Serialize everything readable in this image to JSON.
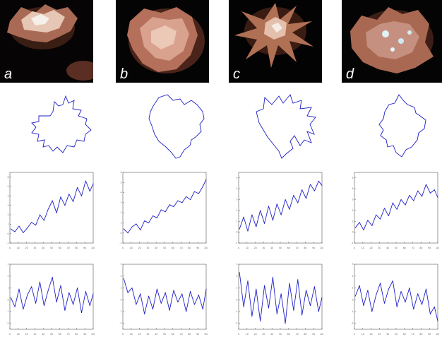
{
  "panels": [
    {
      "label": "a"
    },
    {
      "label": "b"
    },
    {
      "label": "c"
    },
    {
      "label": "d"
    }
  ],
  "colors": {
    "curve": "#1e1ec8",
    "axis": "#555555",
    "photo_bg": "#050505",
    "cell": "#d9a08a"
  },
  "chart_data": [
    {
      "type": "line",
      "panel": "a",
      "row": "signal",
      "x": [
        1,
        6,
        11,
        16,
        21,
        26,
        31,
        36,
        41,
        46,
        51,
        56,
        61,
        66,
        71,
        76,
        81,
        86,
        91,
        96,
        100
      ],
      "y": [
        0.5,
        0.2,
        0.8,
        0.1,
        0.6,
        1.2,
        0.9,
        2.0,
        1.4,
        2.6,
        3.5,
        2.2,
        3.9,
        3.0,
        4.2,
        3.4,
        4.9,
        4.0,
        5.6,
        4.5,
        5.3
      ],
      "xlim": [
        0,
        100
      ],
      "ylim": [
        -1,
        6.5
      ],
      "xticks": [
        "0",
        "10",
        "20",
        "30",
        "40",
        "50",
        "60",
        "70",
        "80",
        "90",
        "100"
      ],
      "yticks": [
        "-1",
        "0",
        "1",
        "2",
        "3",
        "4",
        "5",
        "6"
      ]
    },
    {
      "type": "line",
      "panel": "b",
      "row": "signal",
      "x": [
        1,
        6,
        11,
        16,
        21,
        26,
        31,
        36,
        41,
        46,
        51,
        56,
        61,
        66,
        71,
        76,
        81,
        86,
        91,
        96,
        100
      ],
      "y": [
        0.4,
        0.0,
        0.6,
        0.9,
        0.3,
        1.2,
        1.0,
        1.7,
        1.5,
        2.3,
        2.1,
        2.8,
        2.6,
        3.2,
        3.0,
        3.6,
        3.3,
        4.1,
        3.9,
        4.6,
        5.3
      ],
      "xlim": [
        0,
        100
      ],
      "ylim": [
        -1,
        6
      ],
      "xticks": [
        "0",
        "10",
        "20",
        "30",
        "40",
        "50",
        "60",
        "70",
        "80",
        "90",
        "100"
      ],
      "yticks": [
        "-1",
        "0",
        "1",
        "2",
        "3",
        "4",
        "5",
        "6"
      ]
    },
    {
      "type": "line",
      "panel": "c",
      "row": "signal",
      "x": [
        1,
        6,
        11,
        16,
        21,
        26,
        31,
        36,
        41,
        46,
        51,
        56,
        61,
        66,
        71,
        76,
        81,
        86,
        91,
        96,
        100
      ],
      "y": [
        0.3,
        1.4,
        0.1,
        1.6,
        0.5,
        2.0,
        0.8,
        2.4,
        1.1,
        2.6,
        1.6,
        3.0,
        2.1,
        3.4,
        2.7,
        3.9,
        3.1,
        4.4,
        3.8,
        4.7,
        4.3
      ],
      "xlim": [
        0,
        100
      ],
      "ylim": [
        -1,
        5.5
      ],
      "xticks": [
        "0",
        "10",
        "20",
        "30",
        "40",
        "50",
        "60",
        "70",
        "80",
        "90",
        "100"
      ],
      "yticks": [
        "-1",
        "0",
        "1",
        "2",
        "3",
        "4",
        "5"
      ]
    },
    {
      "type": "line",
      "panel": "d",
      "row": "signal",
      "x": [
        1,
        6,
        11,
        16,
        21,
        26,
        31,
        36,
        41,
        46,
        51,
        56,
        61,
        66,
        71,
        76,
        81,
        86,
        91,
        96,
        100
      ],
      "y": [
        0.4,
        0.9,
        0.2,
        1.1,
        0.6,
        1.6,
        1.2,
        2.2,
        1.5,
        2.7,
        2.1,
        3.0,
        2.5,
        3.4,
        2.9,
        3.8,
        3.3,
        4.4,
        3.6,
        3.9,
        3.2
      ],
      "xlim": [
        0,
        100
      ],
      "ylim": [
        -1,
        5.5
      ],
      "xticks": [
        "0",
        "10",
        "20",
        "30",
        "40",
        "50",
        "60",
        "70",
        "80",
        "90",
        "100"
      ],
      "yticks": [
        "-1",
        "0",
        "1",
        "2",
        "3",
        "4",
        "5"
      ]
    },
    {
      "type": "line",
      "panel": "a",
      "row": "detrended",
      "x": [
        1,
        6,
        11,
        16,
        21,
        26,
        31,
        36,
        41,
        46,
        51,
        56,
        61,
        66,
        71,
        76,
        81,
        86,
        91,
        96,
        100
      ],
      "y": [
        0.2,
        -0.6,
        0.9,
        -0.8,
        0.4,
        1.1,
        -0.3,
        1.5,
        -0.5,
        0.8,
        1.9,
        -0.2,
        1.2,
        -0.9,
        0.6,
        -0.4,
        1.0,
        -1.1,
        0.7,
        -0.5,
        0.5
      ],
      "xlim": [
        0,
        100
      ],
      "ylim": [
        -2.5,
        3
      ],
      "xticks": [
        "0",
        "10",
        "20",
        "30",
        "40",
        "50",
        "60",
        "70",
        "80",
        "90",
        "100"
      ],
      "yticks": [
        "-2",
        "-1",
        "0",
        "1",
        "2",
        "3"
      ]
    },
    {
      "type": "line",
      "panel": "b",
      "row": "detrended",
      "x": [
        1,
        6,
        11,
        16,
        21,
        26,
        31,
        36,
        41,
        46,
        51,
        56,
        61,
        66,
        71,
        76,
        81,
        86,
        91,
        96,
        100
      ],
      "y": [
        1.8,
        0.6,
        1.0,
        -0.4,
        0.5,
        -1.2,
        0.3,
        -0.8,
        0.9,
        -0.3,
        0.6,
        -0.9,
        0.8,
        -0.2,
        0.5,
        -1.0,
        0.7,
        -0.4,
        0.4,
        -0.8,
        0.9
      ],
      "xlim": [
        0,
        100
      ],
      "ylim": [
        -2.5,
        3
      ],
      "xticks": [
        "0",
        "10",
        "20",
        "30",
        "40",
        "50",
        "60",
        "70",
        "80",
        "90",
        "100"
      ],
      "yticks": [
        "-2",
        "-1",
        "0",
        "1",
        "2",
        "3"
      ]
    },
    {
      "type": "line",
      "panel": "c",
      "row": "detrended",
      "x": [
        1,
        6,
        11,
        16,
        21,
        26,
        31,
        36,
        41,
        46,
        51,
        56,
        61,
        66,
        71,
        76,
        81,
        86,
        91,
        96,
        100
      ],
      "y": [
        2.3,
        -0.6,
        1.6,
        -1.4,
        0.9,
        -1.8,
        1.2,
        -0.7,
        1.9,
        -1.2,
        0.5,
        -2.0,
        1.4,
        -0.9,
        1.7,
        -1.3,
        0.8,
        -0.5,
        1.1,
        -1.0,
        0.2
      ],
      "xlim": [
        0,
        100
      ],
      "ylim": [
        -2.5,
        3
      ],
      "xticks": [
        "0",
        "10",
        "20",
        "30",
        "40",
        "50",
        "60",
        "70",
        "80",
        "90",
        "100"
      ],
      "yticks": [
        "-2",
        "-1",
        "0",
        "1",
        "2",
        "3"
      ]
    },
    {
      "type": "line",
      "panel": "d",
      "row": "detrended",
      "x": [
        1,
        6,
        11,
        16,
        21,
        26,
        31,
        36,
        41,
        46,
        51,
        56,
        61,
        66,
        71,
        76,
        81,
        86,
        91,
        96,
        100
      ],
      "y": [
        0.3,
        1.2,
        -0.5,
        0.8,
        -1.0,
        0.4,
        1.4,
        -0.3,
        0.9,
        1.6,
        -0.6,
        0.7,
        -0.2,
        1.0,
        -0.8,
        0.5,
        -0.4,
        0.9,
        -1.2,
        -0.6,
        -1.8
      ],
      "xlim": [
        0,
        100
      ],
      "ylim": [
        -2.5,
        3
      ],
      "xticks": [
        "0",
        "10",
        "20",
        "30",
        "40",
        "50",
        "60",
        "70",
        "80",
        "90",
        "100"
      ],
      "yticks": [
        "-2",
        "-1",
        "0",
        "1",
        "2",
        "3"
      ]
    }
  ]
}
